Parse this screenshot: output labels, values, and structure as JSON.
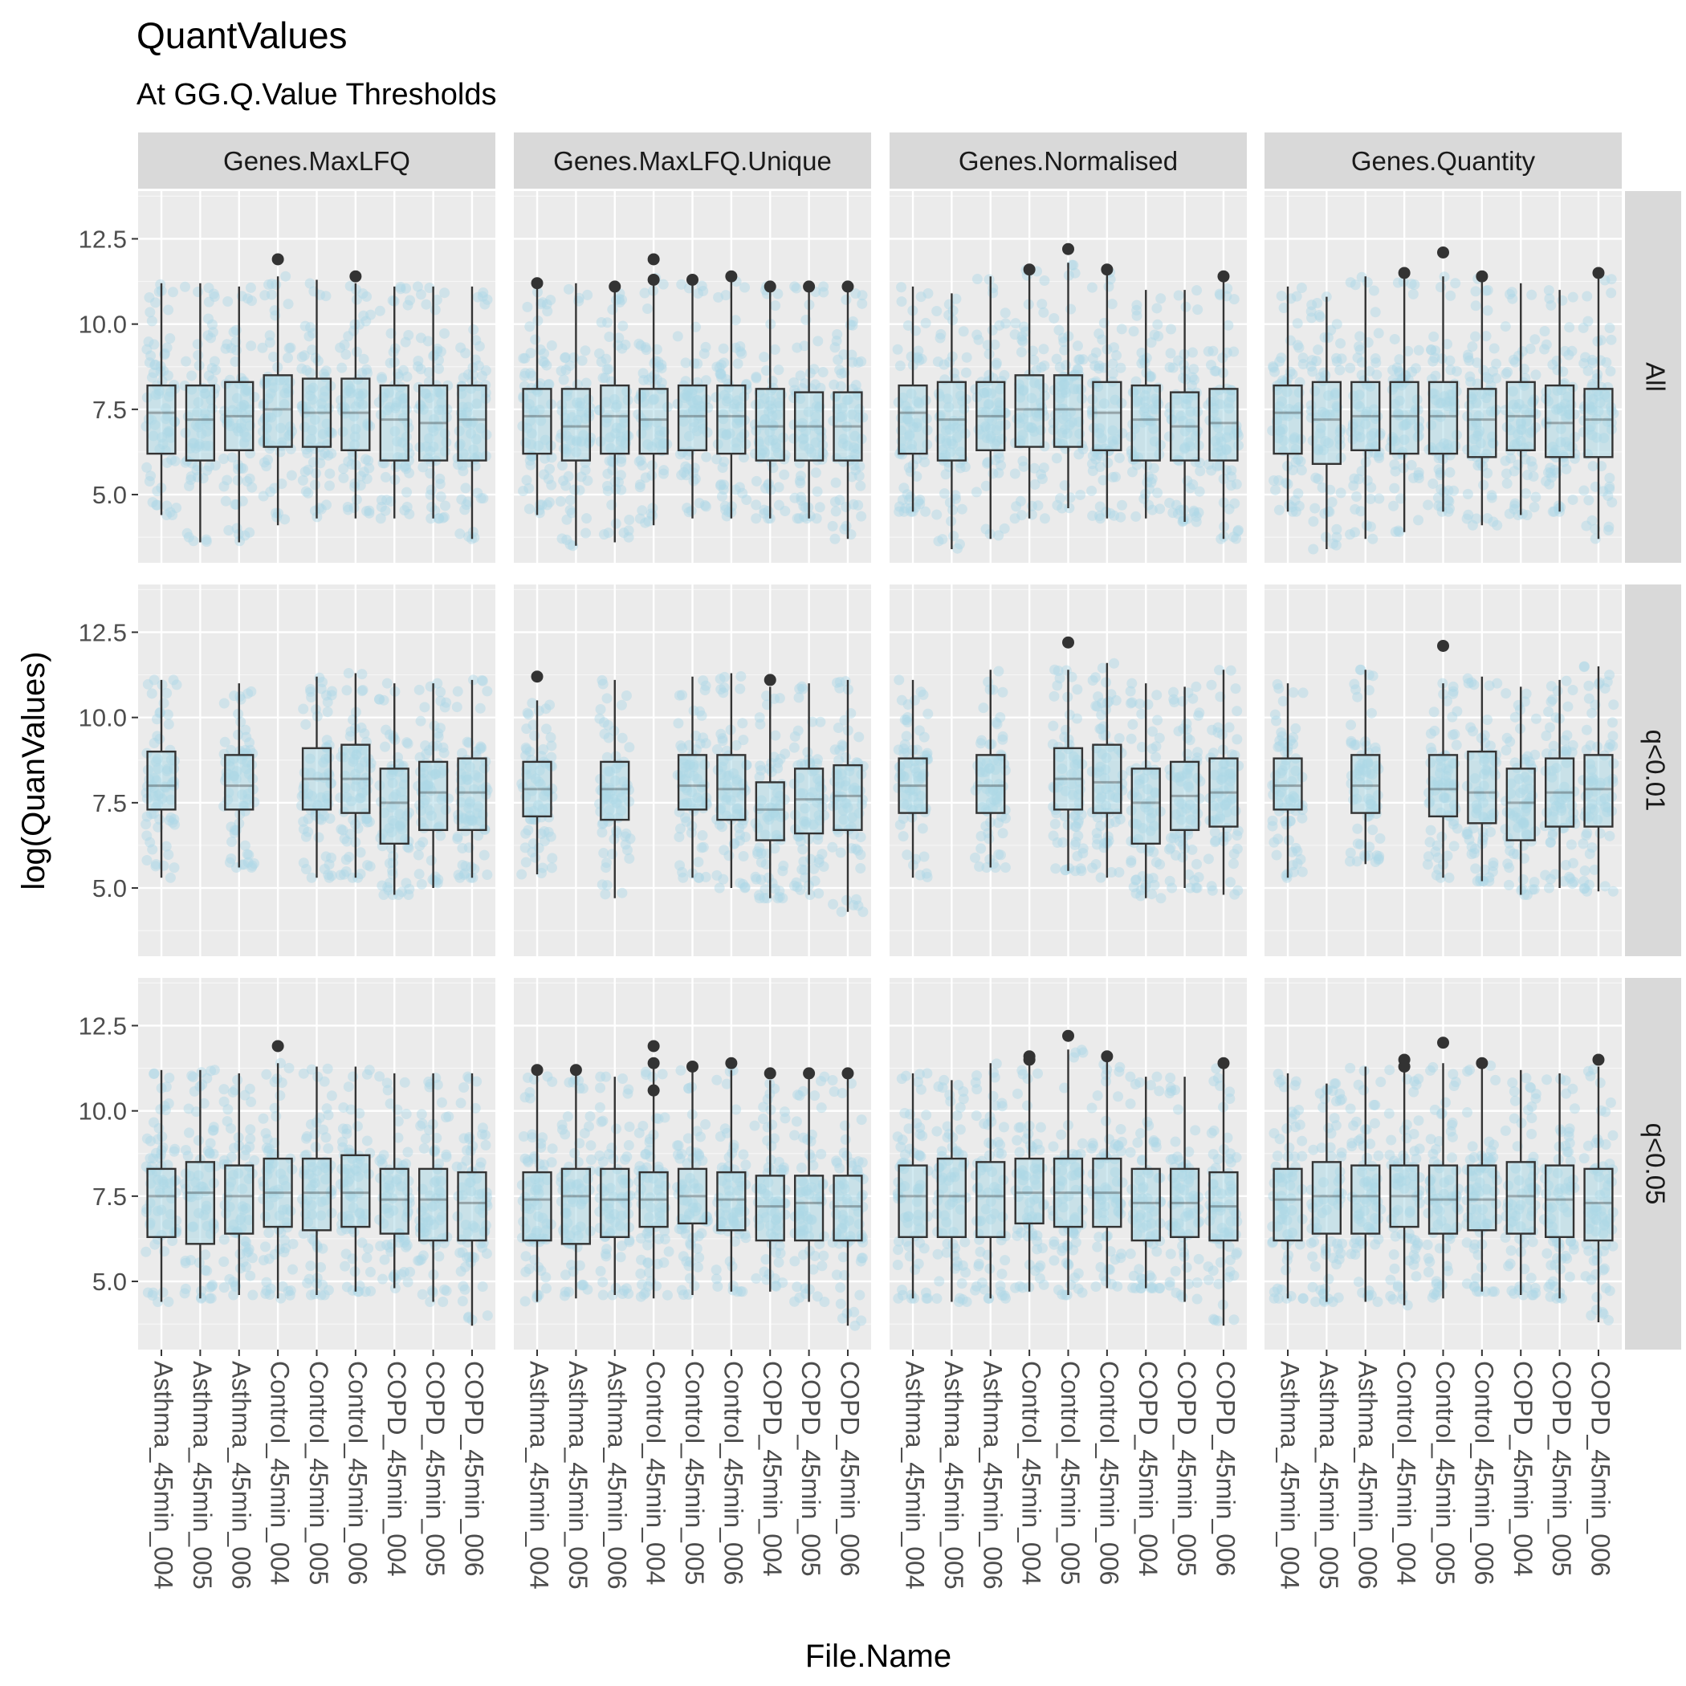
{
  "chart_data": {
    "type": "boxplot",
    "title": "QuantValues",
    "subtitle": "At GG.Q.Value Thresholds",
    "xlabel": "File.Name",
    "ylabel": "log(QuanValues)",
    "y_ticks": [
      "5.0",
      "7.5",
      "10.0",
      "12.5"
    ],
    "y_tick_values": [
      5.0,
      7.5,
      10.0,
      12.5
    ],
    "ylim": [
      3.0,
      13.9
    ],
    "categories": [
      "Asthma_45min_004",
      "Asthma_45min_005",
      "Asthma_45min_006",
      "Control_45min_004",
      "Control_45min_005",
      "Control_45min_006",
      "COPD_45min_004",
      "COPD_45min_005",
      "COPD_45min_006"
    ],
    "facet_columns": [
      "Genes.MaxLFQ",
      "Genes.MaxLFQ.Unique",
      "Genes.Normalised",
      "Genes.Quantity"
    ],
    "facet_rows": [
      "All",
      "q<0.01",
      "q<0.05"
    ],
    "colors": {
      "panel": "#ebebeb",
      "grid": "#ffffff",
      "strip": "#d9d9d9",
      "points": "#add8e6",
      "box_fill": "#add8e6",
      "box_line": "#333333",
      "outlier": "#333333",
      "text": "#4d4d4d",
      "strip_text": "#1a1a1a"
    },
    "panels": [
      [
        [
          [
            4.4,
            6.2,
            7.4,
            8.2,
            11.2,
            []
          ],
          [
            3.6,
            6.0,
            7.2,
            8.2,
            11.2,
            []
          ],
          [
            3.6,
            6.3,
            7.3,
            8.3,
            11.1,
            []
          ],
          [
            4.1,
            6.4,
            7.5,
            8.5,
            11.4,
            [
              11.9
            ]
          ],
          [
            4.3,
            6.4,
            7.4,
            8.4,
            11.3,
            []
          ],
          [
            4.3,
            6.3,
            7.4,
            8.4,
            11.2,
            [
              11.4
            ]
          ],
          [
            4.3,
            6.0,
            7.2,
            8.2,
            11.1,
            []
          ],
          [
            4.3,
            6.0,
            7.1,
            8.2,
            11.1,
            []
          ],
          [
            3.7,
            6.0,
            7.2,
            8.2,
            11.1,
            []
          ]
        ],
        [
          [
            4.4,
            6.2,
            7.3,
            8.1,
            11.1,
            [
              11.2
            ]
          ],
          [
            3.5,
            6.0,
            7.0,
            8.1,
            11.2,
            []
          ],
          [
            3.6,
            6.2,
            7.3,
            8.2,
            11.1,
            [
              11.1
            ]
          ],
          [
            4.1,
            6.2,
            7.2,
            8.1,
            11.4,
            [
              11.9,
              11.3
            ]
          ],
          [
            4.3,
            6.3,
            7.3,
            8.2,
            11.2,
            [
              11.3
            ]
          ],
          [
            4.3,
            6.2,
            7.3,
            8.2,
            11.3,
            [
              11.4
            ]
          ],
          [
            4.3,
            6.0,
            7.0,
            8.1,
            11.1,
            [
              11.1
            ]
          ],
          [
            4.3,
            6.0,
            7.0,
            8.0,
            11.1,
            [
              11.1
            ]
          ],
          [
            3.7,
            6.0,
            7.0,
            8.0,
            11.1,
            [
              11.1
            ]
          ]
        ],
        [
          [
            4.5,
            6.2,
            7.4,
            8.2,
            11.1,
            []
          ],
          [
            3.4,
            6.0,
            7.2,
            8.3,
            10.9,
            []
          ],
          [
            3.7,
            6.3,
            7.3,
            8.3,
            11.4,
            []
          ],
          [
            4.3,
            6.4,
            7.5,
            8.5,
            11.6,
            [
              11.6
            ]
          ],
          [
            4.6,
            6.4,
            7.5,
            8.5,
            11.8,
            [
              12.2
            ]
          ],
          [
            4.3,
            6.3,
            7.4,
            8.3,
            11.6,
            [
              11.6
            ]
          ],
          [
            4.3,
            6.0,
            7.2,
            8.2,
            11.0,
            []
          ],
          [
            4.2,
            6.0,
            7.0,
            8.0,
            11.0,
            []
          ],
          [
            3.7,
            6.0,
            7.1,
            8.1,
            11.4,
            [
              11.4
            ]
          ]
        ],
        [
          [
            4.5,
            6.2,
            7.4,
            8.2,
            11.1,
            []
          ],
          [
            3.4,
            5.9,
            7.2,
            8.3,
            10.8,
            []
          ],
          [
            3.7,
            6.3,
            7.3,
            8.3,
            11.4,
            []
          ],
          [
            3.9,
            6.2,
            7.3,
            8.3,
            11.4,
            [
              11.5
            ]
          ],
          [
            4.5,
            6.2,
            7.3,
            8.3,
            11.4,
            [
              12.1
            ]
          ],
          [
            4.1,
            6.1,
            7.2,
            8.1,
            11.4,
            [
              11.4
            ]
          ],
          [
            4.4,
            6.3,
            7.3,
            8.3,
            11.2,
            []
          ],
          [
            4.5,
            6.1,
            7.1,
            8.2,
            11.0,
            []
          ],
          [
            3.7,
            6.1,
            7.2,
            8.1,
            11.4,
            [
              11.5
            ]
          ]
        ]
      ],
      [
        [
          [
            5.3,
            7.3,
            8.0,
            9.0,
            11.1,
            []
          ],
          null,
          [
            5.6,
            7.3,
            8.0,
            8.9,
            11.0,
            []
          ],
          null,
          [
            5.3,
            7.3,
            8.2,
            9.1,
            11.2,
            []
          ],
          [
            5.3,
            7.2,
            8.2,
            9.2,
            11.3,
            []
          ],
          [
            4.8,
            6.3,
            7.5,
            8.5,
            11.0,
            []
          ],
          [
            5.0,
            6.7,
            7.8,
            8.7,
            11.0,
            []
          ],
          [
            5.3,
            6.7,
            7.8,
            8.8,
            11.1,
            []
          ]
        ],
        [
          [
            5.4,
            7.1,
            7.9,
            8.7,
            10.5,
            [
              11.2
            ]
          ],
          null,
          [
            4.7,
            7.0,
            7.9,
            8.7,
            11.1,
            []
          ],
          null,
          [
            5.3,
            7.3,
            8.0,
            8.9,
            11.2,
            []
          ],
          [
            5.0,
            7.0,
            7.9,
            8.9,
            11.3,
            []
          ],
          [
            4.7,
            6.4,
            7.3,
            8.1,
            10.9,
            [
              11.1
            ]
          ],
          [
            4.8,
            6.6,
            7.6,
            8.5,
            11.0,
            []
          ],
          [
            4.3,
            6.7,
            7.7,
            8.6,
            11.1,
            []
          ]
        ],
        [
          [
            5.3,
            7.2,
            8.0,
            8.8,
            11.1,
            []
          ],
          null,
          [
            5.6,
            7.2,
            8.0,
            8.9,
            11.4,
            []
          ],
          null,
          [
            5.5,
            7.3,
            8.2,
            9.1,
            11.4,
            [
              12.2
            ]
          ],
          [
            5.3,
            7.2,
            8.1,
            9.2,
            11.6,
            []
          ],
          [
            4.7,
            6.3,
            7.5,
            8.5,
            11.0,
            []
          ],
          [
            5.0,
            6.7,
            7.7,
            8.7,
            10.9,
            []
          ],
          [
            4.8,
            6.8,
            7.8,
            8.8,
            11.4,
            []
          ]
        ],
        [
          [
            5.3,
            7.3,
            8.0,
            8.8,
            11.0,
            []
          ],
          null,
          [
            5.7,
            7.2,
            8.0,
            8.9,
            11.4,
            []
          ],
          null,
          [
            5.3,
            7.1,
            7.9,
            8.9,
            11.0,
            [
              12.1
            ]
          ],
          [
            5.2,
            6.9,
            7.8,
            9.0,
            11.2,
            []
          ],
          [
            4.8,
            6.4,
            7.5,
            8.5,
            10.9,
            []
          ],
          [
            5.0,
            6.8,
            7.8,
            8.8,
            11.1,
            []
          ],
          [
            4.9,
            6.8,
            7.9,
            8.9,
            11.5,
            []
          ]
        ]
      ],
      [
        [
          [
            4.4,
            6.3,
            7.5,
            8.3,
            11.2,
            []
          ],
          [
            4.5,
            6.1,
            7.6,
            8.5,
            11.2,
            []
          ],
          [
            4.6,
            6.4,
            7.5,
            8.4,
            11.1,
            []
          ],
          [
            4.5,
            6.6,
            7.6,
            8.6,
            11.4,
            [
              11.9
            ]
          ],
          [
            4.6,
            6.5,
            7.6,
            8.6,
            11.3,
            []
          ],
          [
            4.7,
            6.6,
            7.6,
            8.7,
            11.3,
            []
          ],
          [
            4.8,
            6.4,
            7.4,
            8.3,
            11.1,
            []
          ],
          [
            4.4,
            6.2,
            7.4,
            8.3,
            11.1,
            []
          ],
          [
            3.7,
            6.2,
            7.3,
            8.2,
            11.1,
            []
          ]
        ],
        [
          [
            4.4,
            6.2,
            7.4,
            8.2,
            11.1,
            [
              11.2
            ]
          ],
          [
            4.5,
            6.1,
            7.5,
            8.3,
            11.1,
            [
              11.2
            ]
          ],
          [
            4.6,
            6.3,
            7.4,
            8.3,
            11.0,
            []
          ],
          [
            4.5,
            6.6,
            7.4,
            8.2,
            11.3,
            [
              11.9,
              11.4,
              10.6
            ]
          ],
          [
            4.6,
            6.7,
            7.5,
            8.3,
            11.2,
            [
              11.3
            ]
          ],
          [
            4.7,
            6.5,
            7.4,
            8.2,
            11.2,
            [
              11.4
            ]
          ],
          [
            4.7,
            6.2,
            7.2,
            8.1,
            10.9,
            [
              11.1
            ]
          ],
          [
            4.4,
            6.2,
            7.3,
            8.1,
            11.0,
            [
              11.1
            ]
          ],
          [
            3.7,
            6.2,
            7.2,
            8.1,
            11.0,
            [
              11.1
            ]
          ]
        ],
        [
          [
            4.5,
            6.3,
            7.5,
            8.4,
            11.1,
            []
          ],
          [
            4.4,
            6.3,
            7.5,
            8.6,
            10.9,
            []
          ],
          [
            4.5,
            6.3,
            7.5,
            8.5,
            11.4,
            []
          ],
          [
            4.7,
            6.7,
            7.6,
            8.6,
            11.5,
            [
              11.6,
              11.5
            ]
          ],
          [
            4.6,
            6.6,
            7.6,
            8.6,
            11.8,
            [
              12.2
            ]
          ],
          [
            4.8,
            6.6,
            7.6,
            8.6,
            11.5,
            [
              11.6
            ]
          ],
          [
            4.8,
            6.2,
            7.3,
            8.3,
            11.0,
            []
          ],
          [
            4.4,
            6.3,
            7.3,
            8.3,
            11.0,
            []
          ],
          [
            3.7,
            6.2,
            7.2,
            8.2,
            11.3,
            [
              11.4
            ]
          ]
        ],
        [
          [
            4.5,
            6.2,
            7.4,
            8.3,
            11.1,
            []
          ],
          [
            4.4,
            6.4,
            7.5,
            8.5,
            10.8,
            []
          ],
          [
            4.4,
            6.4,
            7.5,
            8.4,
            11.3,
            []
          ],
          [
            4.3,
            6.6,
            7.5,
            8.4,
            11.2,
            [
              11.5,
              11.3
            ]
          ],
          [
            4.5,
            6.4,
            7.4,
            8.4,
            11.4,
            [
              12.0
            ]
          ],
          [
            4.7,
            6.5,
            7.4,
            8.4,
            11.4,
            [
              11.4
            ]
          ],
          [
            4.6,
            6.4,
            7.5,
            8.5,
            11.2,
            []
          ],
          [
            4.5,
            6.3,
            7.4,
            8.4,
            11.1,
            []
          ],
          [
            3.8,
            6.2,
            7.3,
            8.3,
            11.3,
            [
              11.5
            ]
          ]
        ]
      ]
    ]
  }
}
